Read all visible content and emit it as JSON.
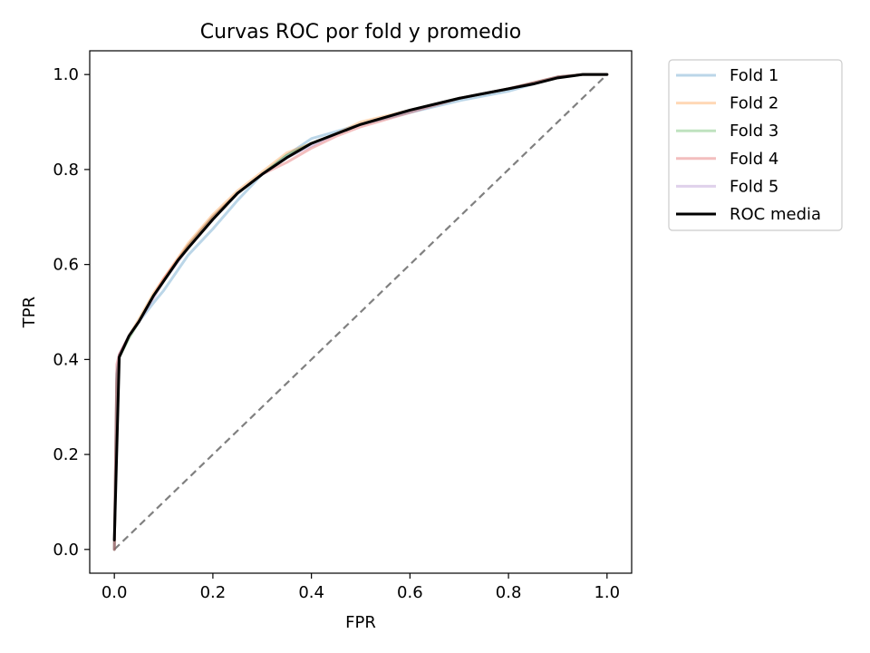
{
  "chart_data": {
    "type": "line",
    "title": "Curvas ROC por fold y promedio",
    "xlabel": "FPR",
    "ylabel": "TPR",
    "xlim": [
      -0.05,
      1.05
    ],
    "ylim": [
      -0.05,
      1.05
    ],
    "xticks": [
      "0.0",
      "0.2",
      "0.4",
      "0.6",
      "0.8",
      "1.0"
    ],
    "yticks": [
      "0.0",
      "0.2",
      "0.4",
      "0.6",
      "0.8",
      "1.0"
    ],
    "grid": false,
    "legend_position": "outside-upper-right",
    "series": [
      {
        "name": "Fold 1",
        "color": "#1f77b4",
        "opacity": 0.3,
        "x": [
          0,
          0.005,
          0.01,
          0.03,
          0.05,
          0.08,
          0.1,
          0.15,
          0.2,
          0.25,
          0.3,
          0.35,
          0.4,
          0.45,
          0.5,
          0.6,
          0.7,
          0.8,
          0.9,
          0.95,
          1.0
        ],
        "y": [
          0,
          0.36,
          0.41,
          0.45,
          0.48,
          0.52,
          0.545,
          0.62,
          0.675,
          0.735,
          0.79,
          0.83,
          0.865,
          0.88,
          0.895,
          0.92,
          0.945,
          0.965,
          0.995,
          1.0,
          1.0
        ]
      },
      {
        "name": "Fold 2",
        "color": "#ff7f0e",
        "opacity": 0.3,
        "x": [
          0,
          0.005,
          0.01,
          0.03,
          0.05,
          0.08,
          0.1,
          0.15,
          0.2,
          0.25,
          0.3,
          0.35,
          0.4,
          0.45,
          0.5,
          0.6,
          0.7,
          0.8,
          0.9,
          0.95,
          1.0
        ],
        "y": [
          0,
          0.35,
          0.41,
          0.45,
          0.485,
          0.54,
          0.57,
          0.645,
          0.705,
          0.755,
          0.795,
          0.835,
          0.855,
          0.875,
          0.9,
          0.925,
          0.95,
          0.97,
          0.995,
          1.0,
          1.0
        ]
      },
      {
        "name": "Fold 3",
        "color": "#2ca02c",
        "opacity": 0.3,
        "x": [
          0,
          0.005,
          0.01,
          0.03,
          0.05,
          0.08,
          0.1,
          0.15,
          0.2,
          0.25,
          0.3,
          0.35,
          0.4,
          0.45,
          0.5,
          0.6,
          0.7,
          0.8,
          0.9,
          0.95,
          1.0
        ],
        "y": [
          0,
          0.37,
          0.405,
          0.445,
          0.48,
          0.535,
          0.565,
          0.64,
          0.7,
          0.75,
          0.79,
          0.83,
          0.855,
          0.875,
          0.895,
          0.925,
          0.95,
          0.97,
          0.995,
          1.0,
          1.0
        ]
      },
      {
        "name": "Fold 4",
        "color": "#d62728",
        "opacity": 0.3,
        "x": [
          0,
          0.005,
          0.01,
          0.03,
          0.05,
          0.08,
          0.1,
          0.15,
          0.2,
          0.25,
          0.3,
          0.35,
          0.4,
          0.45,
          0.5,
          0.6,
          0.7,
          0.8,
          0.9,
          0.95,
          1.0
        ],
        "y": [
          0,
          0.39,
          0.41,
          0.45,
          0.48,
          0.535,
          0.57,
          0.64,
          0.7,
          0.75,
          0.79,
          0.815,
          0.845,
          0.87,
          0.89,
          0.92,
          0.95,
          0.97,
          0.995,
          1.0,
          1.0
        ]
      },
      {
        "name": "Fold 5",
        "color": "#9467bd",
        "opacity": 0.3,
        "x": [
          0,
          0.005,
          0.01,
          0.03,
          0.05,
          0.08,
          0.1,
          0.15,
          0.2,
          0.25,
          0.3,
          0.35,
          0.4,
          0.45,
          0.5,
          0.6,
          0.7,
          0.8,
          0.9,
          0.95,
          1.0
        ],
        "y": [
          0,
          0.37,
          0.41,
          0.45,
          0.48,
          0.53,
          0.565,
          0.635,
          0.695,
          0.75,
          0.79,
          0.825,
          0.85,
          0.875,
          0.895,
          0.925,
          0.95,
          0.97,
          0.995,
          1.0,
          1.0
        ]
      },
      {
        "name": "ROC media",
        "color": "#000000",
        "opacity": 1,
        "x": [
          0,
          0.01,
          0.03,
          0.05,
          0.08,
          0.1,
          0.13,
          0.15,
          0.2,
          0.25,
          0.3,
          0.35,
          0.4,
          0.45,
          0.5,
          0.6,
          0.7,
          0.8,
          0.85,
          0.9,
          0.95,
          1.0
        ],
        "y": [
          0.02,
          0.405,
          0.45,
          0.48,
          0.535,
          0.565,
          0.61,
          0.635,
          0.695,
          0.75,
          0.79,
          0.825,
          0.855,
          0.875,
          0.895,
          0.925,
          0.95,
          0.97,
          0.98,
          0.993,
          1.0,
          1.0
        ]
      }
    ],
    "reference_line": {
      "x": [
        0,
        1
      ],
      "y": [
        0,
        1
      ],
      "color": "#808080",
      "style": "dashed"
    }
  }
}
